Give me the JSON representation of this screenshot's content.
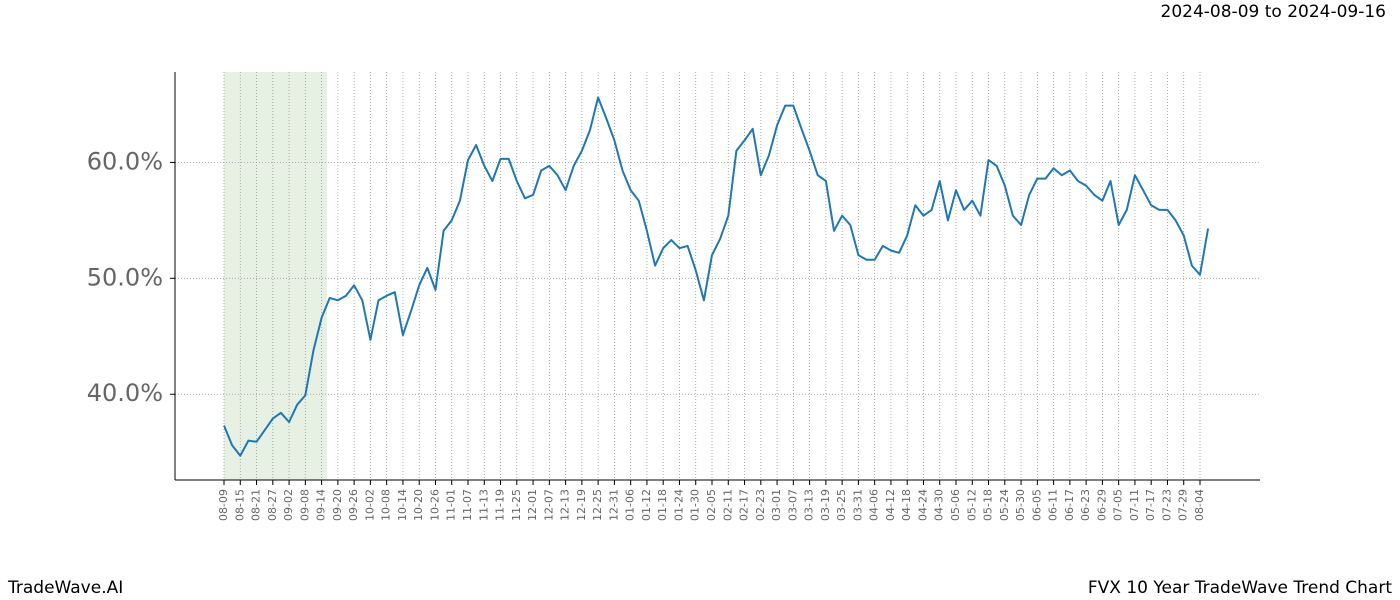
{
  "chart_data": {
    "type": "line",
    "title": "2024-08-09 to 2024-09-16",
    "brand": "TradeWave.AI",
    "footer": "FVX 10 Year TradeWave Trend Chart",
    "categories": [
      "08-09",
      null,
      "08-15",
      null,
      "08-21",
      null,
      "08-27",
      null,
      "09-02",
      null,
      "09-08",
      null,
      "09-14",
      null,
      "09-20",
      null,
      "09-26",
      null,
      "10-02",
      null,
      "10-08",
      null,
      "10-14",
      null,
      "10-20",
      null,
      "10-26",
      null,
      "11-01",
      null,
      "11-07",
      null,
      "11-13",
      null,
      "11-19",
      null,
      "11-25",
      null,
      "12-01",
      null,
      "12-07",
      null,
      "12-13",
      null,
      "12-19",
      null,
      "12-25",
      null,
      "12-31",
      null,
      "01-06",
      null,
      "01-12",
      null,
      "01-18",
      null,
      "01-24",
      null,
      "01-30",
      null,
      "02-05",
      null,
      "02-11",
      null,
      "02-17",
      null,
      "02-23",
      null,
      "03-01",
      null,
      "03-07",
      null,
      "03-13",
      null,
      "03-19",
      null,
      "03-25",
      null,
      "03-31",
      null,
      "04-06",
      null,
      "04-12",
      null,
      "04-18",
      null,
      "04-24",
      null,
      "04-30",
      null,
      "05-06",
      null,
      "05-12",
      null,
      "05-18",
      null,
      "05-24",
      null,
      "05-30",
      null,
      "06-05",
      null,
      "06-11",
      null,
      "06-17",
      null,
      "06-23",
      null,
      "06-29",
      null,
      "07-05",
      null,
      "07-11",
      null,
      "07-17",
      null,
      "07-23",
      null,
      "07-29",
      null,
      "08-04",
      null
    ],
    "series": [
      {
        "color": "#1f77b4",
        "values": [
          37.3,
          35.6,
          34.7,
          36.0,
          35.9,
          36.9,
          37.9,
          38.4,
          37.6,
          39.1,
          39.9,
          43.8,
          46.6,
          48.3,
          48.1,
          48.5,
          49.4,
          48.1,
          44.7,
          48.1,
          48.5,
          48.8,
          45.1,
          47.2,
          49.4,
          50.9,
          49.0,
          54.1,
          55.0,
          56.7,
          60.2,
          61.5,
          59.7,
          58.4,
          60.3,
          60.3,
          58.4,
          56.9,
          57.2,
          59.3,
          59.7,
          58.9,
          57.6,
          59.7,
          61.0,
          62.8,
          65.6,
          63.8,
          61.9,
          59.3,
          57.6,
          56.7,
          54.1,
          51.1,
          52.6,
          53.3,
          52.6,
          52.8,
          50.7,
          48.1,
          52.0,
          53.4,
          55.4,
          61.0,
          61.9,
          62.9,
          58.9,
          60.6,
          63.2,
          64.9,
          64.9,
          62.9,
          61.0,
          58.9,
          58.4,
          54.1,
          55.4,
          54.6,
          52.0,
          51.6,
          51.6,
          52.8,
          52.4,
          52.2,
          53.7,
          56.3,
          55.4,
          55.9,
          58.4,
          55.0,
          57.6,
          55.9,
          56.7,
          55.4,
          60.2,
          59.7,
          58.0,
          55.4,
          54.6,
          57.2,
          58.6,
          58.6,
          59.5,
          58.9,
          59.3,
          58.4,
          58.0,
          57.2,
          56.7,
          58.4,
          54.6,
          55.9,
          58.9,
          57.6,
          56.3,
          55.9,
          55.9,
          55.0,
          53.7,
          51.1,
          50.3,
          54.3
        ]
      }
    ],
    "ylim": [
      32.6,
      67.8
    ],
    "yticks": [
      {
        "value": 40,
        "label": "40.0%"
      },
      {
        "value": 50,
        "label": "50.0%"
      },
      {
        "value": 60,
        "label": "60.0%"
      }
    ],
    "grid": true,
    "shaded_span": [
      0,
      12.67
    ],
    "shade_color": "#e6f0e3"
  }
}
